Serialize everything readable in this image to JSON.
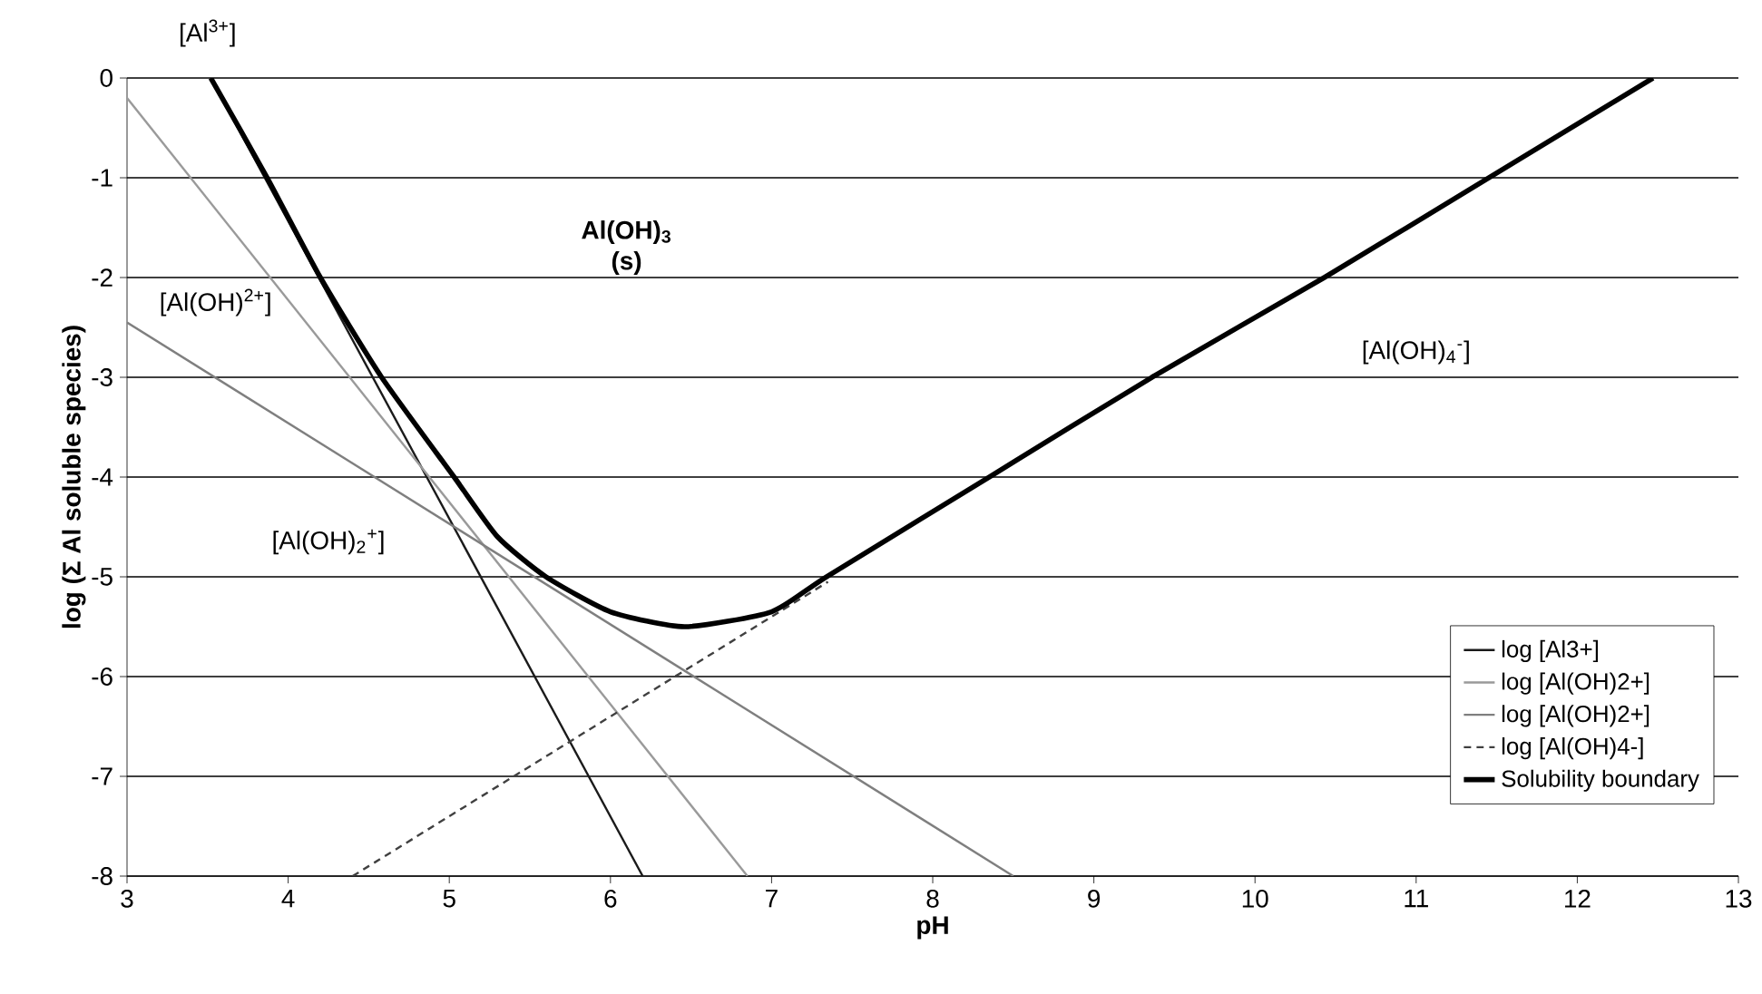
{
  "chart_data": {
    "type": "line",
    "xlabel": "pH",
    "ylabel": "log (Σ Al soluble species)",
    "xlim": [
      3,
      13
    ],
    "ylim": [
      -8,
      0
    ],
    "xticks": [
      3,
      4,
      5,
      6,
      7,
      8,
      9,
      10,
      11,
      12,
      13
    ],
    "yticks": [
      -8,
      -7,
      -6,
      -5,
      -4,
      -3,
      -2,
      -1,
      0
    ],
    "grid": "y",
    "legend": "bottom right",
    "marker": "none",
    "series": [
      {
        "name": "log [Al3+]",
        "color": "#1a1a1a",
        "line_style": "solid",
        "x": [
          3.52,
          6.2
        ],
        "values": [
          0,
          -8
        ]
      },
      {
        "name": "log [Al(OH)2+]",
        "color": "#9a9a9a",
        "line_style": "solid",
        "x": [
          3,
          6.85
        ],
        "values": [
          -0.2,
          -8
        ]
      },
      {
        "name": "log [Al(OH)2+]",
        "color": "#7f7f7f",
        "line_style": "solid",
        "x": [
          3,
          8.5
        ],
        "values": [
          -2.45,
          -8
        ]
      },
      {
        "name": "log [Al(OH)4-]",
        "color": "#404040",
        "line_style": "dashed",
        "x": [
          4.4,
          7.35
        ],
        "values": [
          -8,
          -5.05
        ]
      },
      {
        "name": "Solubility boundary",
        "color": "#000000",
        "line_style": "solid",
        "x": [
          3.52,
          3.87,
          4.2,
          4.58,
          5.03,
          5.3,
          5.6,
          6.0,
          6.46,
          7.0,
          7.34,
          8.35,
          9.36,
          10.43,
          11.45,
          12.47
        ],
        "values": [
          0,
          -1,
          -2,
          -3,
          -4,
          -4.6,
          -5,
          -5.35,
          -5.5,
          -5.35,
          -5,
          -4,
          -3,
          -2,
          -1,
          0
        ]
      }
    ],
    "annotations": [
      "[Al$^{3+}$]",
      "[Al(OH)$^{2+}$]",
      "Al(OH)$_{3}$ (s)",
      "[Al(OH)$_{4}$$^{-}$]",
      "[Al(OH)$_{2}$$^{+}$]"
    ]
  }
}
